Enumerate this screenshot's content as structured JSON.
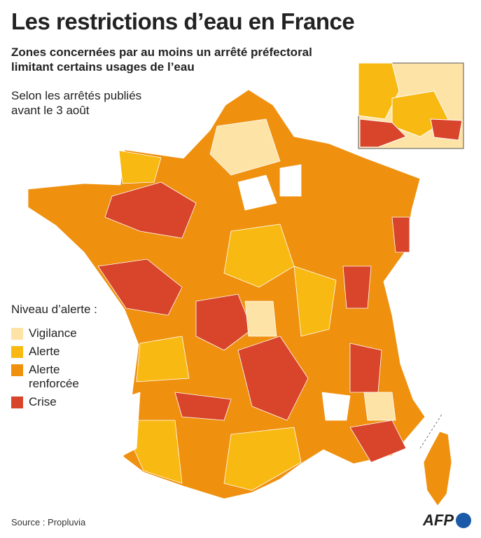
{
  "header": {
    "title": "Les restrictions d’eau en France",
    "subtitle": [
      "Zones concernées par au moins un arrêté préfectoral",
      "limitant certains usages de l’eau"
    ],
    "note": [
      "Selon les arrêtés publiés",
      "avant le 3 août"
    ]
  },
  "legend": {
    "title": "Niveau d’alerte :",
    "items": [
      {
        "label": [
          "Vigilance"
        ],
        "color": "#fde3a6"
      },
      {
        "label": [
          "Alerte"
        ],
        "color": "#f8b912"
      },
      {
        "label": [
          "Alerte",
          "renforcée"
        ],
        "color": "#ef900f"
      },
      {
        "label": [
          "Crise"
        ],
        "color": "#d8452b"
      }
    ]
  },
  "footer": {
    "source": "Source : Propluvia",
    "logo": "AFP"
  }
}
